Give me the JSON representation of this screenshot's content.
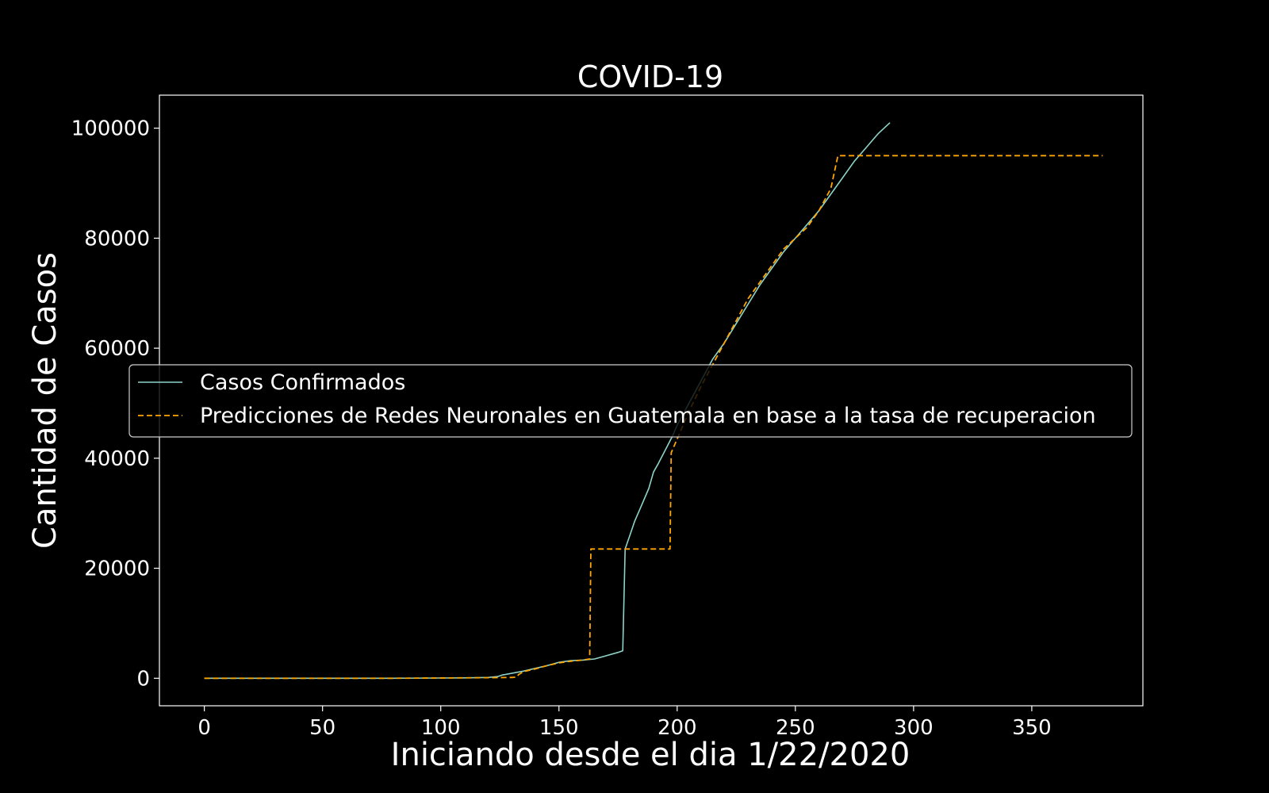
{
  "chart_data": {
    "type": "line",
    "title": "COVID-19",
    "xlabel": "Iniciando desde el dia 1/22/2020",
    "ylabel": "Cantidad de Casos",
    "xlim": [
      -19,
      397
    ],
    "ylim": [
      -5000,
      106000
    ],
    "grid": false,
    "legend_position": "center-left",
    "background": "#000000",
    "x_ticks": [
      0,
      50,
      100,
      150,
      200,
      250,
      300,
      350
    ],
    "y_ticks": [
      0,
      20000,
      40000,
      60000,
      80000,
      100000
    ],
    "series": [
      {
        "name": "Casos Confirmados",
        "color": "#8dd3c7",
        "dash": "solid",
        "x": [
          0,
          40,
          80,
          100,
          110,
          120,
          124,
          126,
          130,
          135,
          140,
          145,
          150,
          155,
          160,
          165,
          170,
          175,
          177,
          178,
          180,
          182,
          185,
          188,
          190,
          192,
          195,
          198,
          200,
          205,
          210,
          215,
          220,
          225,
          230,
          235,
          240,
          245,
          250,
          255,
          260,
          265,
          270,
          275,
          280,
          283,
          285,
          290
        ],
        "y": [
          0,
          0,
          0,
          50,
          80,
          150,
          300,
          600,
          900,
          1300,
          1800,
          2300,
          2900,
          3200,
          3300,
          3500,
          4100,
          4700,
          5000,
          23500,
          26000,
          28500,
          31500,
          34500,
          37500,
          39000,
          41500,
          44000,
          46000,
          50000,
          54000,
          58000,
          61000,
          64500,
          68000,
          71500,
          74500,
          77500,
          80000,
          82500,
          85000,
          88000,
          91000,
          94000,
          96500,
          98000,
          99000,
          101000
        ]
      },
      {
        "name": "Predicciones de Redes Neuronales en Guatemala en base a la tasa de recuperacion",
        "color": "#ffa500",
        "dash": "dashed",
        "x": [
          0,
          80,
          120,
          130,
          132,
          133,
          135,
          140,
          145,
          150,
          155,
          160,
          163,
          163.5,
          197,
          197.5,
          200,
          205,
          210,
          215,
          220,
          225,
          230,
          235,
          240,
          245,
          250,
          255,
          260,
          265,
          268,
          270,
          275,
          300,
          350,
          380
        ],
        "y": [
          0,
          0,
          100,
          150,
          200,
          700,
          1200,
          1700,
          2300,
          2800,
          3100,
          3300,
          3500,
          23500,
          23500,
          41000,
          43500,
          48500,
          53000,
          57000,
          61000,
          65000,
          69000,
          72000,
          75000,
          78000,
          80000,
          82000,
          85000,
          89000,
          95000,
          95000,
          95000,
          95000,
          95000,
          95000
        ]
      }
    ]
  }
}
